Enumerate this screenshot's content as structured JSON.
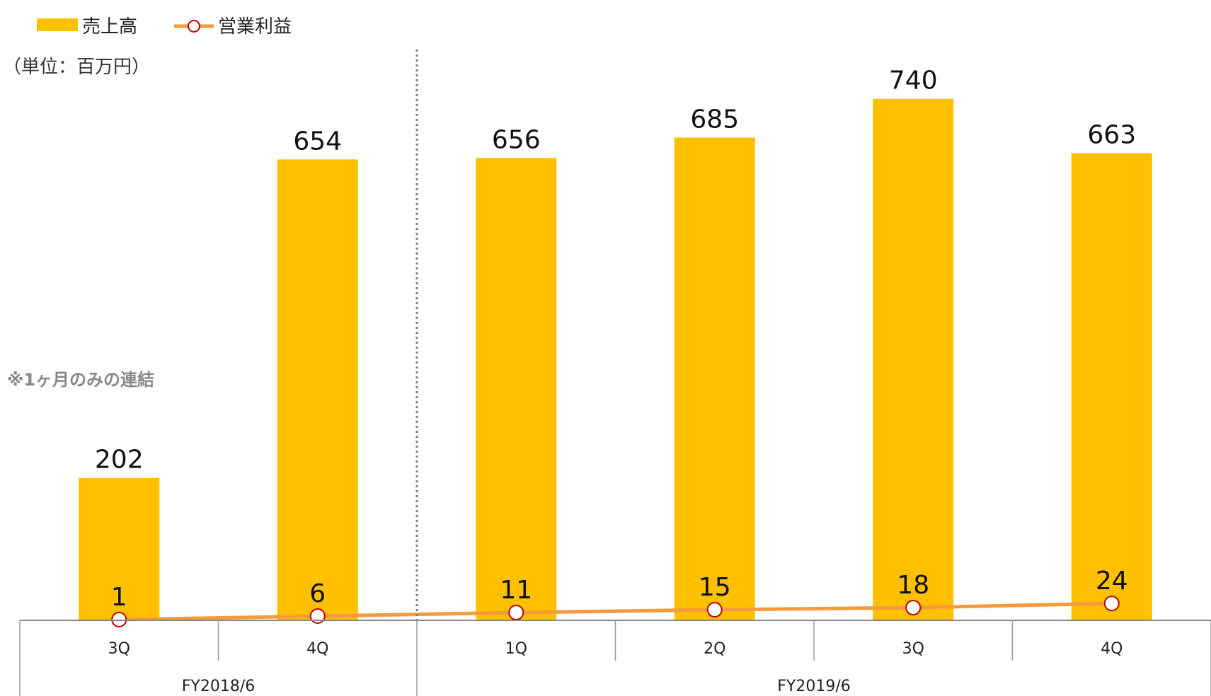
{
  "chart_data": {
    "type": "bar",
    "categories": [
      "3Q",
      "4Q",
      "1Q",
      "2Q",
      "3Q",
      "4Q"
    ],
    "groups": [
      {
        "label": "FY2018/6",
        "count": 2
      },
      {
        "label": "FY2019/6",
        "count": 4
      }
    ],
    "series": [
      {
        "name": "売上高",
        "type": "bar",
        "values": [
          202,
          654,
          656,
          685,
          740,
          663
        ],
        "color": "#FFC000"
      },
      {
        "name": "営業利益",
        "type": "line",
        "values": [
          1,
          6,
          11,
          15,
          18,
          24
        ],
        "color": "#F79A3E",
        "marker_edge": "#C00000"
      }
    ],
    "ylim": [
      0,
      820
    ],
    "unit_note": "（単位：百万円）",
    "annotation": "※1ヶ月のみの連結",
    "legend_position": "top-left"
  }
}
